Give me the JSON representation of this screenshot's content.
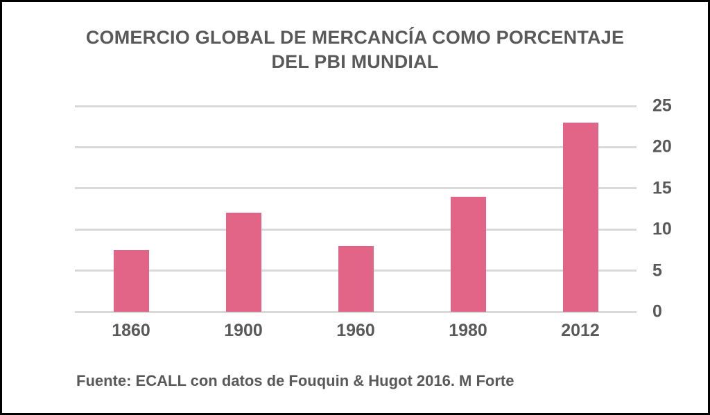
{
  "title": {
    "line1": "COMERCIO GLOBAL DE MERCANCÍA COMO PORCENTAJE",
    "line2": "DEL PBI MUNDIAL"
  },
  "source_note": "Fuente: ECALL con datos de Fouquin & Hugot 2016. M Forte",
  "colors": {
    "bar": "#e26487",
    "gridline": "#d9d9d9",
    "text": "#595959",
    "frame_border": "#000000",
    "background": "#ffffff"
  },
  "chart_data": {
    "type": "bar",
    "title": "COMERCIO GLOBAL DE MERCANCÍA COMO PORCENTAJE DEL PBI MUNDIAL",
    "categories": [
      "1860",
      "1900",
      "1960",
      "1980",
      "2012"
    ],
    "values": [
      7.5,
      12,
      8,
      14,
      23
    ],
    "xlabel": "",
    "ylabel": "",
    "ylim": [
      0,
      25
    ],
    "yticks": [
      0,
      5,
      10,
      15,
      20,
      25
    ],
    "grid": true,
    "legend_position": "none",
    "value_axis_side": "right",
    "bar_color": "#e26487",
    "source": "Fuente: ECALL con datos de Fouquin & Hugot 2016. M Forte"
  }
}
